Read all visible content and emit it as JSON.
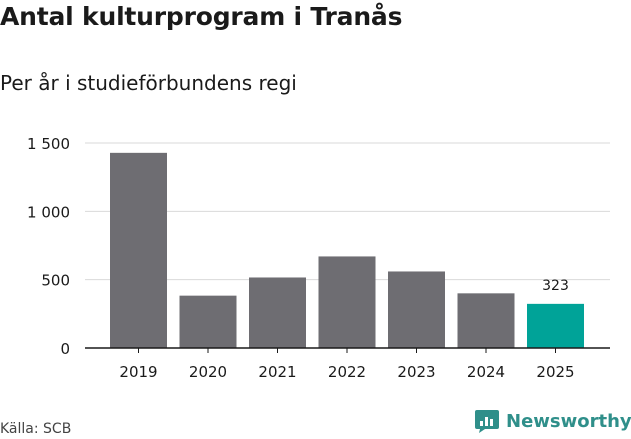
{
  "title": "Antal kulturprogram i Tranås",
  "subtitle": "Per år i studieförbundens regi",
  "source": "Källa: SCB",
  "brand": {
    "name": "Newsworthy",
    "icon": "newsworthy-logo-icon",
    "color": "#2f8f8a"
  },
  "colors": {
    "bar": "#6e6d72",
    "highlight": "#00a398",
    "grid": "#d9d9d9",
    "axis": "#1a1a1a"
  },
  "chart_data": {
    "type": "bar",
    "categories": [
      "2019",
      "2020",
      "2021",
      "2022",
      "2023",
      "2024",
      "2025"
    ],
    "values": [
      1428,
      383,
      516,
      670,
      560,
      400,
      323
    ],
    "highlight_index": 6,
    "data_labels": [
      {
        "index": 6,
        "text": "323"
      }
    ],
    "ylim": [
      0,
      1500
    ],
    "yticks": [
      0,
      500,
      1000,
      1500
    ],
    "ytick_labels": [
      "0",
      "500",
      "1 000",
      "1 500"
    ],
    "grid": true,
    "legend": "none"
  }
}
